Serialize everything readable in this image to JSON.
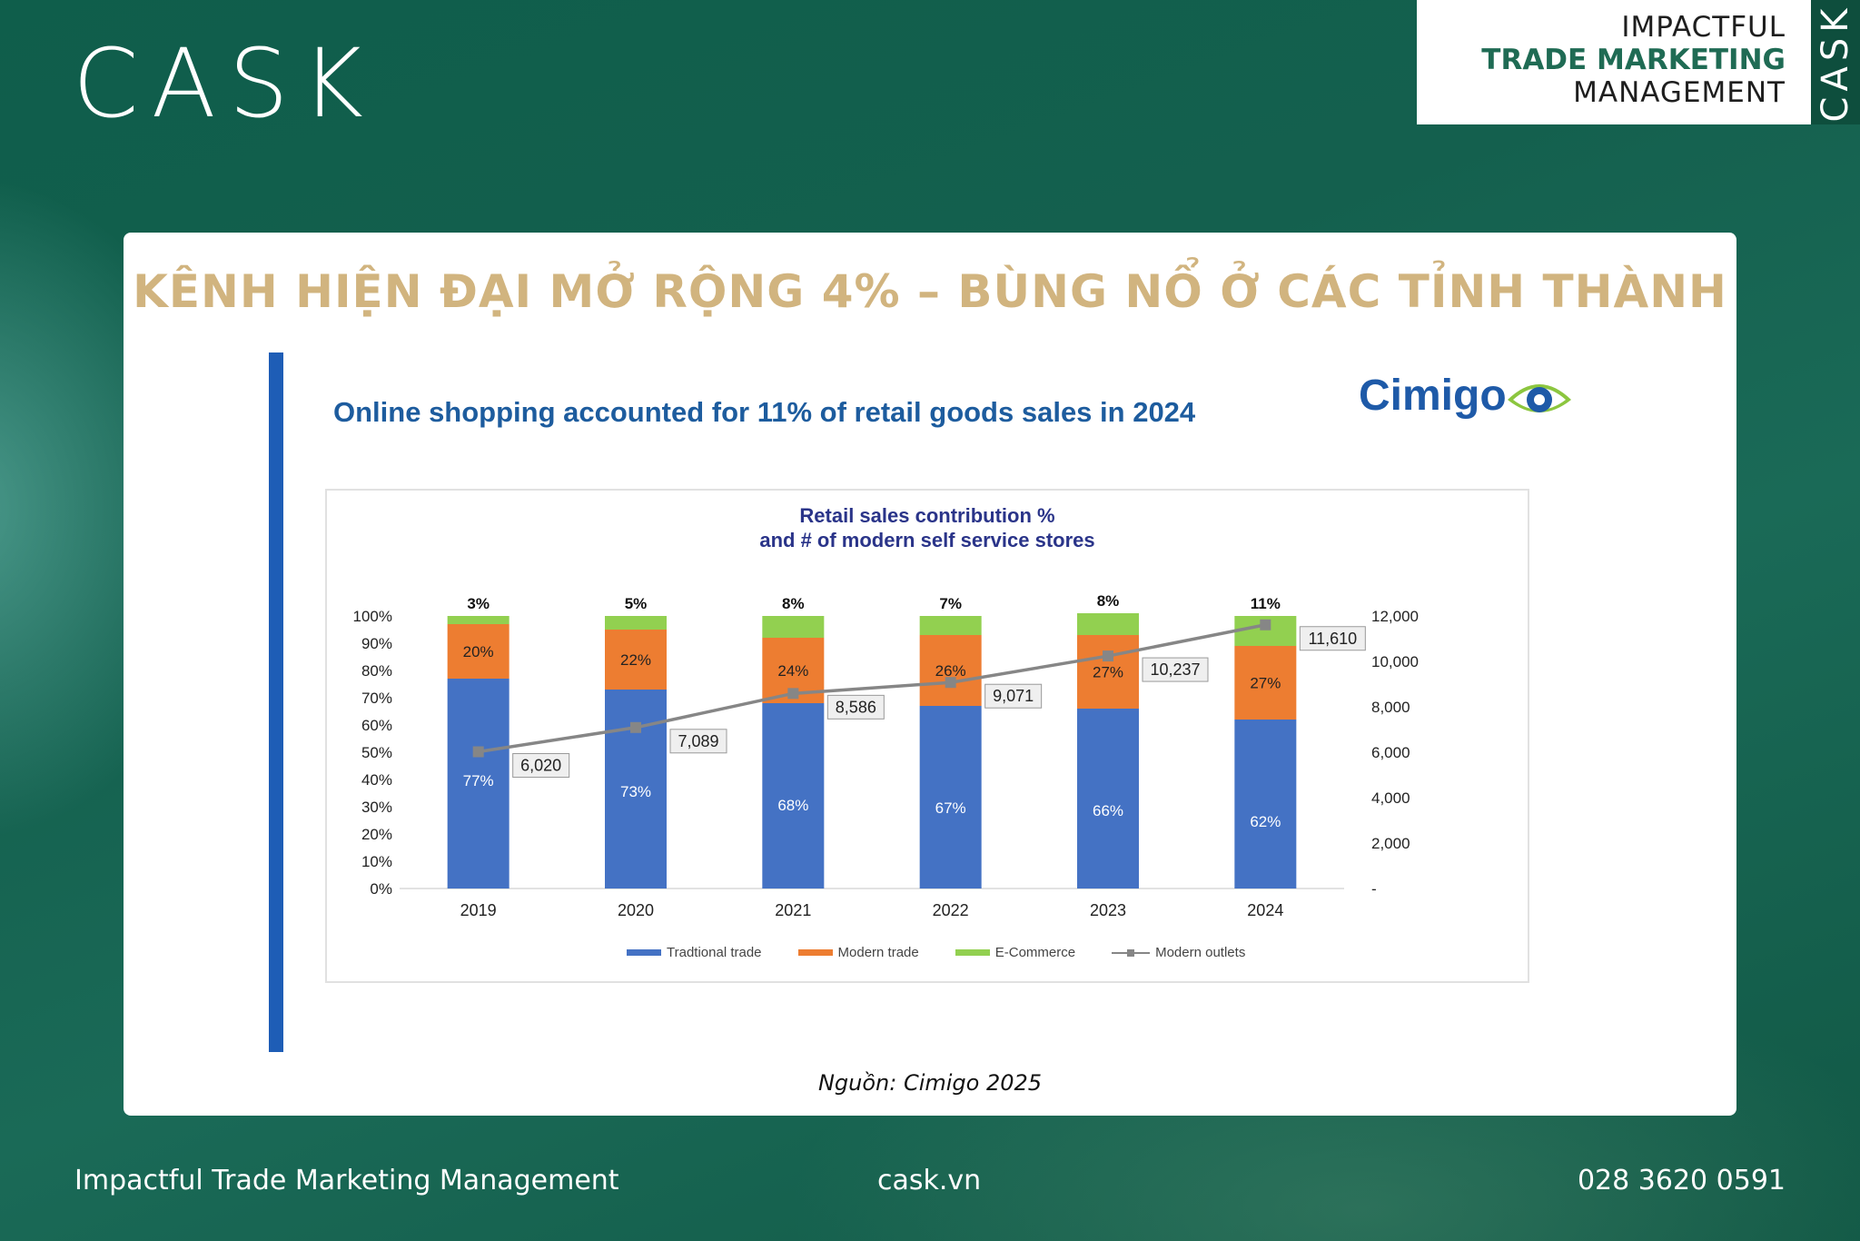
{
  "brand": {
    "logo": "CASK",
    "box_lines": [
      "IMPACTFUL",
      "TRADE MARKETING",
      "MANAGEMENT"
    ],
    "box_side": "CASK"
  },
  "card": {
    "headline": "KÊNH HIỆN ĐẠI MỞ RỘNG 4% – BÙNG NỔ Ở CÁC TỈNH THÀNH",
    "slide_title": "Online shopping accounted for 11% of retail goods sales in 2024",
    "logo": "Cimigo",
    "source": "Nguồn: Cimigo 2025"
  },
  "footer": {
    "tagline": "Impactful Trade Marketing Management",
    "website": "cask.vn",
    "phone": "028 3620 0591"
  },
  "colors": {
    "traditional": "#4472c4",
    "modern": "#ed7d31",
    "ecommerce": "#92d050",
    "outlets": "#868686",
    "headline": "#d1b47f",
    "accent_blue": "#1e5db6"
  },
  "chart_data": {
    "type": "bar",
    "stacked": true,
    "title": "Retail sales contribution %",
    "subtitle": "and # of modern self service stores",
    "categories": [
      "2019",
      "2020",
      "2021",
      "2022",
      "2023",
      "2024"
    ],
    "series": [
      {
        "name": "Tradtional trade",
        "values": [
          77,
          73,
          68,
          67,
          66,
          62
        ],
        "labels": [
          "77%",
          "73%",
          "68%",
          "67%",
          "66%",
          "62%"
        ]
      },
      {
        "name": "Modern trade",
        "values": [
          20,
          22,
          24,
          26,
          27,
          27
        ],
        "labels": [
          "20%",
          "22%",
          "24%",
          "26%",
          "27%",
          "27%"
        ]
      },
      {
        "name": "E-Commerce",
        "values": [
          3,
          5,
          8,
          7,
          8,
          11
        ],
        "labels": [
          "3%",
          "5%",
          "8%",
          "7%",
          "8%",
          "11%"
        ]
      },
      {
        "name": "Modern outlets",
        "type": "line",
        "axis": "right",
        "values": [
          6020,
          7089,
          8586,
          9071,
          10237,
          11610
        ],
        "labels": [
          "6,020",
          "7,089",
          "8,586",
          "9,071",
          "10,237",
          "11,610"
        ]
      }
    ],
    "y_left": {
      "ylim": [
        0,
        100
      ],
      "ticks": [
        "0%",
        "10%",
        "20%",
        "30%",
        "40%",
        "50%",
        "60%",
        "70%",
        "80%",
        "90%",
        "100%"
      ]
    },
    "y_right": {
      "ylim": [
        0,
        12000
      ],
      "ticks": [
        "-",
        "2,000",
        "4,000",
        "6,000",
        "8,000",
        "10,000",
        "12,000"
      ]
    },
    "legend": "bottom",
    "grid": false
  }
}
